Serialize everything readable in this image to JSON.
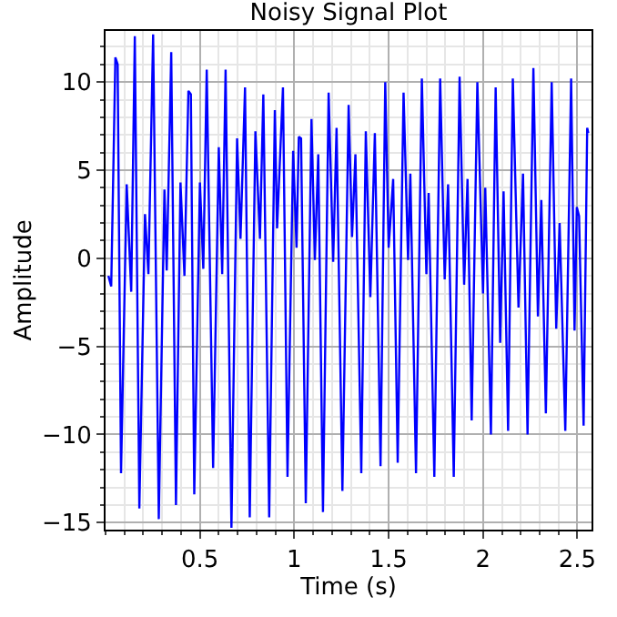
{
  "chart_data": {
    "type": "line",
    "title": "Noisy Signal Plot",
    "xlabel": "Time (s)",
    "ylabel": "Amplitude",
    "x": [
      0.015,
      0.03,
      0.052,
      0.064,
      0.082,
      0.112,
      0.136,
      0.155,
      0.179,
      0.209,
      0.227,
      0.252,
      0.282,
      0.312,
      0.324,
      0.348,
      0.373,
      0.397,
      0.418,
      0.439,
      0.452,
      0.47,
      0.5,
      0.518,
      0.536,
      0.57,
      0.6,
      0.618,
      0.636,
      0.667,
      0.697,
      0.715,
      0.739,
      0.764,
      0.794,
      0.818,
      0.836,
      0.867,
      0.897,
      0.909,
      0.94,
      0.964,
      0.994,
      1.012,
      1.024,
      1.036,
      1.061,
      1.091,
      1.109,
      1.127,
      1.152,
      1.182,
      1.206,
      1.224,
      1.255,
      1.288,
      1.306,
      1.324,
      1.355,
      1.379,
      1.403,
      1.427,
      1.457,
      1.482,
      1.5,
      1.524,
      1.548,
      1.579,
      1.603,
      1.615,
      1.645,
      1.676,
      1.7,
      1.712,
      1.742,
      1.773,
      1.797,
      1.815,
      1.845,
      1.876,
      1.9,
      1.918,
      1.94,
      1.97,
      2.0,
      2.012,
      2.042,
      2.067,
      2.091,
      2.109,
      2.133,
      2.158,
      2.188,
      2.212,
      2.236,
      2.267,
      2.291,
      2.309,
      2.333,
      2.364,
      2.388,
      2.406,
      2.436,
      2.467,
      2.485,
      2.497,
      2.509,
      2.533,
      2.552,
      2.558
    ],
    "series": [
      {
        "color": "#0000ff",
        "values": [
          -1.0,
          -1.6,
          11.4,
          11.0,
          -12.2,
          4.2,
          -1.9,
          12.6,
          -14.2,
          2.5,
          -0.9,
          12.7,
          -14.8,
          3.9,
          -0.7,
          11.7,
          -14.0,
          4.3,
          -1.0,
          9.5,
          9.3,
          -13.4,
          4.3,
          -0.6,
          10.7,
          -11.9,
          6.3,
          -0.9,
          10.7,
          -15.3,
          6.8,
          1.1,
          9.7,
          -14.7,
          7.2,
          1.1,
          9.3,
          -14.7,
          8.4,
          1.7,
          9.7,
          -12.4,
          6.1,
          0.6,
          6.9,
          6.8,
          -13.9,
          7.9,
          -0.1,
          5.9,
          -14.4,
          9.4,
          -0.2,
          7.4,
          -13.2,
          8.7,
          1.2,
          5.9,
          -12.2,
          7.2,
          -2.2,
          7.1,
          -11.8,
          10.0,
          0.6,
          4.5,
          -11.6,
          9.4,
          -0.1,
          4.8,
          -12.2,
          10.2,
          -0.9,
          3.7,
          -12.4,
          10.2,
          -1.2,
          4.2,
          -12.4,
          10.3,
          -1.5,
          4.5,
          -9.2,
          10.0,
          -2.0,
          4.0,
          -10.0,
          9.7,
          -4.8,
          3.8,
          -9.8,
          10.2,
          -2.8,
          4.8,
          -10.0,
          10.8,
          -3.3,
          3.3,
          -8.8,
          10.0,
          -4.0,
          2.0,
          -9.8,
          10.2,
          -4.1,
          2.9,
          2.4,
          -9.5,
          7.4,
          7.1
        ]
      }
    ],
    "xlim": [
      0,
      2.575
    ],
    "xticks": [
      0.5,
      1,
      1.5,
      2,
      2.5
    ],
    "ylim": [
      -15.4,
      12.9
    ],
    "yticks": [
      -15,
      -10,
      -5,
      0,
      5,
      10
    ],
    "grid": true,
    "marker": "none",
    "line_style": "solid"
  }
}
